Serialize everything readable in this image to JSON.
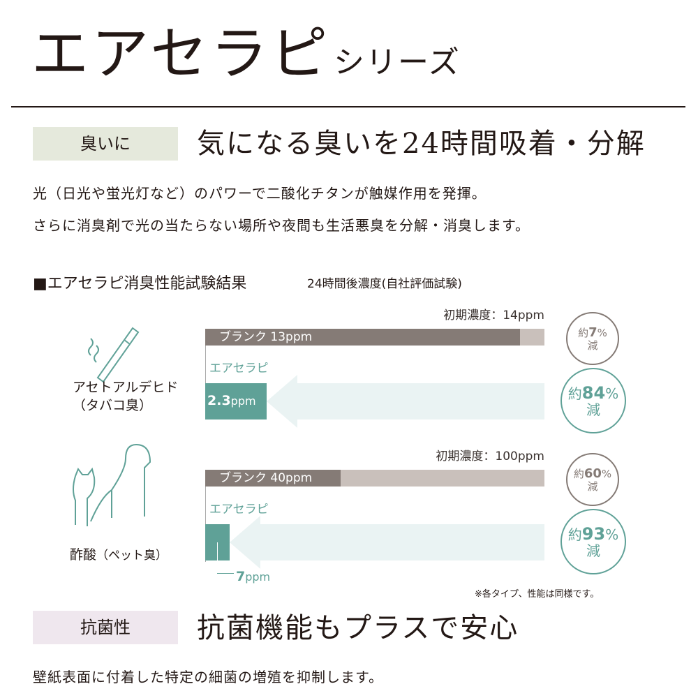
{
  "header": {
    "title": "エアセラピ",
    "subtitle": "シリーズ"
  },
  "odor": {
    "tag": "臭いに",
    "headline": "気になる臭いを24時間吸着・分解",
    "body": [
      "光（日光や蛍光灯など）のパワーで二酸化チタンが触媒作用を発揮。",
      "さらに消臭剤で光の当たらない場所や夜間も生活悪臭を分解・消臭します。"
    ]
  },
  "test": {
    "heading": "■エアセラピ消臭性能試験結果",
    "note": "24時間後濃度(自社評価試験)",
    "groups": [
      {
        "name": "アセトアルデヒド",
        "sub": "（タバコ臭）",
        "icon": "cigarette-icon",
        "initial_label": "初期濃度：14ppm",
        "initial": 14,
        "blank_label": "ブランク 13ppm",
        "blank": 13,
        "product_label": "エアセラピ",
        "product_value_label": "2.3",
        "product_unit": "ppm",
        "product": 2.3,
        "blank_pct": {
          "pre": "約",
          "num": "7",
          "unit": "%",
          "post": "減"
        },
        "product_pct": {
          "pre": "約",
          "num": "84",
          "unit": "%",
          "post": "減"
        }
      },
      {
        "name": "酢酸",
        "sub": "（ペット臭）",
        "icon": "dog-cat-icon",
        "initial_label": "初期濃度：100ppm",
        "initial": 100,
        "blank_label": "ブランク 40ppm",
        "blank": 40,
        "product_label": "エアセラピ",
        "product_value_label": "7",
        "product_unit": "ppm",
        "product": 7,
        "blank_pct": {
          "pre": "約",
          "num": "60",
          "unit": "%",
          "post": "減"
        },
        "product_pct": {
          "pre": "約",
          "num": "93",
          "unit": "%",
          "post": "減"
        }
      }
    ],
    "footnote": "※各タイプ、性能は同様です。"
  },
  "antibac": {
    "tag": "抗菌性",
    "headline": "抗菌機能もプラスで安心",
    "body": "壁紙表面に付着した特定の細菌の増殖を抑制します。"
  },
  "colors": {
    "blank": "#857b76",
    "blank_rest": "#c9c0bb",
    "teal": "#5fa197",
    "arrow": "#eaf3f3",
    "tag1": "#e5e9dc",
    "tag2": "#efe7ee"
  }
}
